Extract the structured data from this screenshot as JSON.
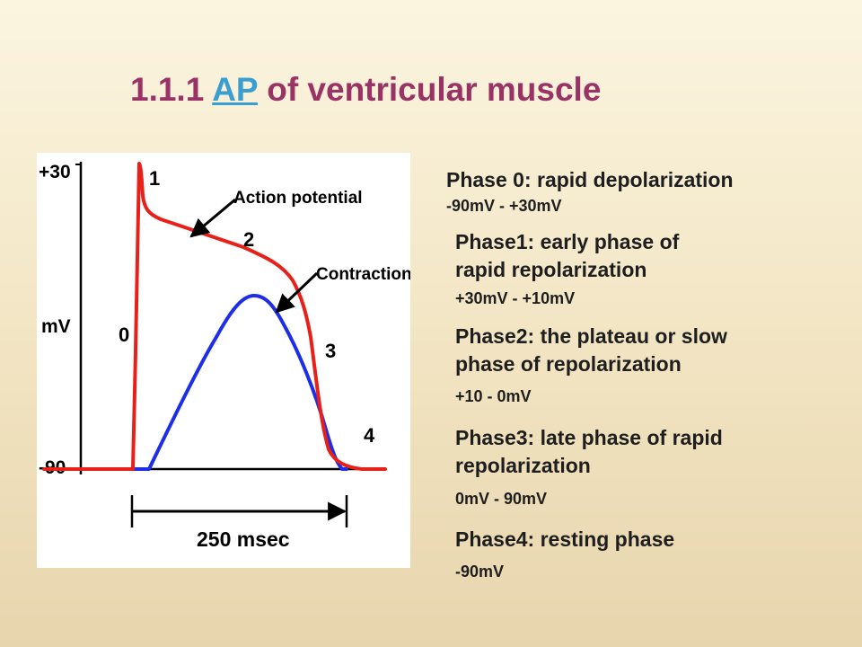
{
  "slide": {
    "title_prefix": "1.1.1 ",
    "title_link": "AP",
    "title_suffix": " of ventricular muscle",
    "title_color": "#993366",
    "link_color": "#3a9fd0"
  },
  "figure": {
    "y_top_tick": "+30",
    "y_bottom_tick": "-90",
    "y_unit": "mV",
    "phase_numbers": [
      "0",
      "1",
      "2",
      "3",
      "4"
    ],
    "action_potential_label": "Action potential",
    "contraction_label": "Contraction",
    "time_label": "250 msec",
    "action_potential_color": "#e8201a",
    "contraction_color": "#1e2ee6"
  },
  "phases": [
    {
      "title_lines": [
        "Phase 0: rapid depolarization"
      ],
      "range": "-90mV - +30mV"
    },
    {
      "title_lines": [
        "Phase1: early phase of",
        "rapid repolarization"
      ],
      "range": "+30mV - +10mV"
    },
    {
      "title_lines": [
        "Phase2: the plateau or slow",
        "phase of repolarization"
      ],
      "range": "+10 - 0mV"
    },
    {
      "title_lines": [
        "Phase3: late phase of rapid",
        "repolarization"
      ],
      "range": "0mV - 90mV"
    },
    {
      "title_lines": [
        "Phase4: resting phase"
      ],
      "range": "-90mV"
    }
  ]
}
